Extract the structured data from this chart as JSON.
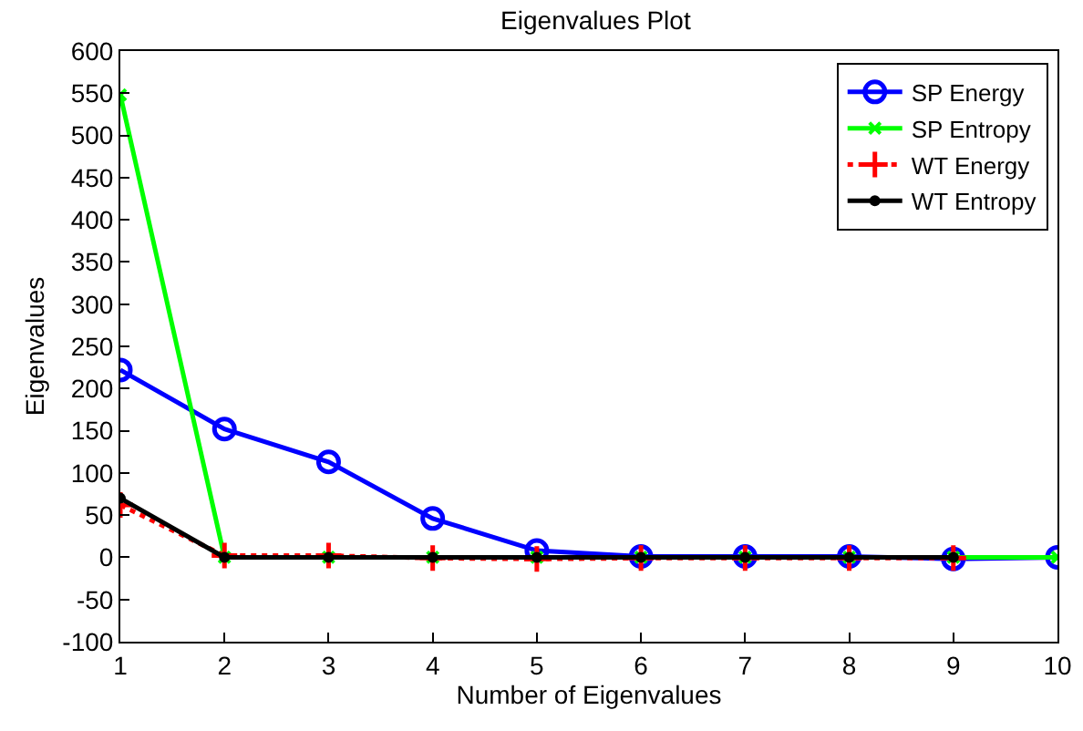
{
  "chart_data": {
    "type": "line",
    "title": "Eigenvalues Plot",
    "xlabel": "Number of Eigenvalues",
    "ylabel": "Eigenvalues",
    "xlim": [
      1,
      10
    ],
    "xticks": [
      1,
      2,
      3,
      4,
      5,
      6,
      7,
      8,
      9,
      10
    ],
    "ylim": [
      -100,
      600
    ],
    "yticks": [
      -100,
      -50,
      0,
      50,
      100,
      150,
      200,
      250,
      300,
      350,
      400,
      450,
      500,
      550,
      600
    ],
    "grid": false,
    "legend": "top right",
    "series": [
      {
        "name": "SP Energy",
        "color": "#0000ff",
        "marker": "circle",
        "line_style": "solid",
        "x": [
          1,
          2,
          3,
          4,
          5,
          6,
          7,
          8,
          9,
          10
        ],
        "values": [
          222,
          152,
          113,
          46,
          8,
          1,
          1,
          1,
          -2,
          0
        ]
      },
      {
        "name": "SP Entropy",
        "color": "#00ff00",
        "marker": "cross",
        "line_style": "solid",
        "x": [
          1,
          2,
          3,
          4,
          5,
          6,
          7,
          8,
          9,
          10
        ],
        "values": [
          548,
          0,
          0,
          0,
          0,
          0,
          0,
          0,
          0,
          0
        ]
      },
      {
        "name": "WT Energy",
        "color": "#ff0000",
        "marker": "plus",
        "line_style": "dotted",
        "x": [
          1,
          2,
          3,
          4,
          5,
          6,
          7,
          8,
          9
        ],
        "values": [
          62,
          2,
          2,
          -1,
          -2,
          -1,
          -1,
          -1,
          -1
        ]
      },
      {
        "name": "WT Entropy",
        "color": "#000000",
        "marker": "dot",
        "line_style": "solid",
        "x": [
          1,
          2,
          3,
          4,
          5,
          6,
          7,
          8,
          9
        ],
        "values": [
          70,
          0,
          0,
          0,
          0,
          0,
          0,
          0,
          0
        ]
      }
    ]
  }
}
